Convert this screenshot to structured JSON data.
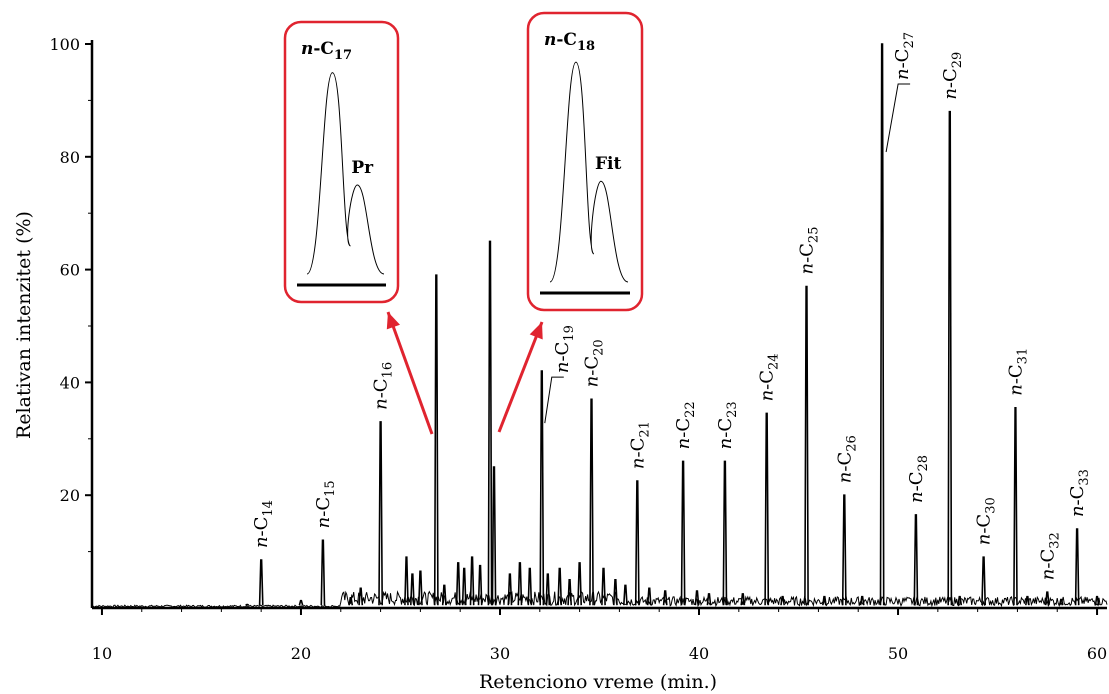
{
  "chart_data": {
    "type": "line",
    "xlabel": "Retenciono vreme (min.)",
    "ylabel": "Relativan intenzitet (%)",
    "xlim": [
      9.5,
      60.5
    ],
    "ylim": [
      0,
      100
    ],
    "x_ticks": [
      10,
      20,
      30,
      40,
      50,
      60
    ],
    "y_ticks": [
      20,
      40,
      60,
      80,
      100
    ],
    "grid": false,
    "peaks": [
      {
        "x": 18.0,
        "y": 8.5,
        "label": "n-C",
        "sub": "14"
      },
      {
        "x": 21.1,
        "y": 12,
        "label": "n-C",
        "sub": "15"
      },
      {
        "x": 24.0,
        "y": 33,
        "label": "n-C",
        "sub": "16"
      },
      {
        "x": 26.8,
        "y": 59,
        "label": "",
        "sub": ""
      },
      {
        "x": 29.5,
        "y": 65,
        "label": "",
        "sub": ""
      },
      {
        "x": 32.1,
        "y": 42,
        "label": "n-C",
        "sub": "19"
      },
      {
        "x": 34.6,
        "y": 37,
        "label": "n-C",
        "sub": "20"
      },
      {
        "x": 36.9,
        "y": 22.5,
        "label": "n-C",
        "sub": "21"
      },
      {
        "x": 39.2,
        "y": 26,
        "label": "n-C",
        "sub": "22"
      },
      {
        "x": 41.3,
        "y": 26,
        "label": "n-C",
        "sub": "23"
      },
      {
        "x": 43.4,
        "y": 34.5,
        "label": "n-C",
        "sub": "24"
      },
      {
        "x": 45.4,
        "y": 57,
        "label": "n-C",
        "sub": "25"
      },
      {
        "x": 47.3,
        "y": 20,
        "label": "n-C",
        "sub": "26"
      },
      {
        "x": 49.2,
        "y": 100,
        "label": "n-C",
        "sub": "27"
      },
      {
        "x": 50.9,
        "y": 16.5,
        "label": "n-C",
        "sub": "28"
      },
      {
        "x": 52.6,
        "y": 88,
        "label": "n-C",
        "sub": "29"
      },
      {
        "x": 54.3,
        "y": 9,
        "label": "n-C",
        "sub": "30"
      },
      {
        "x": 55.9,
        "y": 35.5,
        "label": "n-C",
        "sub": "31"
      },
      {
        "x": 57.5,
        "y": 2.8,
        "label": "n-C",
        "sub": "32"
      },
      {
        "x": 59.0,
        "y": 14,
        "label": "n-C",
        "sub": "33"
      }
    ],
    "minor_peaks": [
      {
        "x": 17.3,
        "y": 0.6
      },
      {
        "x": 20.0,
        "y": 1.3
      },
      {
        "x": 22.5,
        "y": 1.8
      },
      {
        "x": 23.0,
        "y": 3.5
      },
      {
        "x": 25.3,
        "y": 9
      },
      {
        "x": 25.6,
        "y": 6
      },
      {
        "x": 26.0,
        "y": 6.5
      },
      {
        "x": 27.2,
        "y": 4
      },
      {
        "x": 27.9,
        "y": 8
      },
      {
        "x": 28.2,
        "y": 7
      },
      {
        "x": 28.6,
        "y": 9
      },
      {
        "x": 29.0,
        "y": 7.5
      },
      {
        "x": 29.7,
        "y": 25
      },
      {
        "x": 30.5,
        "y": 6
      },
      {
        "x": 31.0,
        "y": 8
      },
      {
        "x": 31.5,
        "y": 7
      },
      {
        "x": 32.4,
        "y": 6
      },
      {
        "x": 33.0,
        "y": 7
      },
      {
        "x": 33.5,
        "y": 5
      },
      {
        "x": 34.0,
        "y": 8
      },
      {
        "x": 35.2,
        "y": 7
      },
      {
        "x": 35.8,
        "y": 5
      },
      {
        "x": 36.3,
        "y": 4
      },
      {
        "x": 37.5,
        "y": 3.5
      },
      {
        "x": 38.3,
        "y": 3
      },
      {
        "x": 39.9,
        "y": 3
      },
      {
        "x": 40.5,
        "y": 2.5
      },
      {
        "x": 42.2,
        "y": 2.5
      },
      {
        "x": 44.2,
        "y": 2
      },
      {
        "x": 46.3,
        "y": 2
      },
      {
        "x": 48.2,
        "y": 2
      },
      {
        "x": 53.1,
        "y": 2
      },
      {
        "x": 56.5,
        "y": 2
      },
      {
        "x": 58.2,
        "y": 1.5
      },
      {
        "x": 60.0,
        "y": 2
      }
    ],
    "insets": [
      {
        "title": "n-C",
        "title_sub": "17",
        "peak_label": "Pr",
        "main_height": 0.95,
        "second_height": 0.42,
        "points_to_x": 26.8
      },
      {
        "title": "n-C",
        "title_sub": "18",
        "peak_label": "Fit",
        "main_height": 0.96,
        "second_height": 0.44,
        "points_to_x": 29.5
      }
    ],
    "colors": {
      "trace": "#000000",
      "inset_frame": "#e0242f",
      "arrow": "#e0242f"
    }
  }
}
